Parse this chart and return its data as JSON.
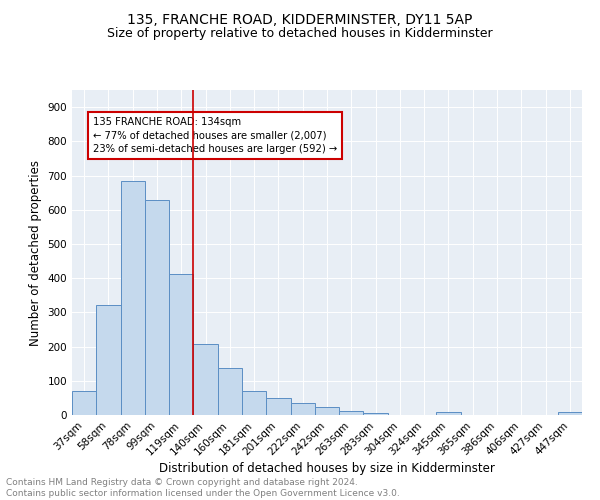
{
  "title": "135, FRANCHE ROAD, KIDDERMINSTER, DY11 5AP",
  "subtitle": "Size of property relative to detached houses in Kidderminster",
  "xlabel": "Distribution of detached houses by size in Kidderminster",
  "ylabel": "Number of detached properties",
  "categories": [
    "37sqm",
    "58sqm",
    "78sqm",
    "99sqm",
    "119sqm",
    "140sqm",
    "160sqm",
    "181sqm",
    "201sqm",
    "222sqm",
    "242sqm",
    "263sqm",
    "283sqm",
    "304sqm",
    "324sqm",
    "345sqm",
    "365sqm",
    "386sqm",
    "406sqm",
    "427sqm",
    "447sqm"
  ],
  "values": [
    70,
    322,
    683,
    628,
    411,
    209,
    137,
    70,
    49,
    35,
    22,
    13,
    7,
    0,
    0,
    8,
    0,
    0,
    0,
    0,
    8
  ],
  "bar_color": "#c5d9ed",
  "bar_edge_color": "#5b8ec4",
  "vline_x": 4.5,
  "vline_color": "#cc0000",
  "annotation_text": "135 FRANCHE ROAD: 134sqm\n← 77% of detached houses are smaller (2,007)\n23% of semi-detached houses are larger (592) →",
  "annotation_box_color": "#ffffff",
  "annotation_box_edge": "#cc0000",
  "ylim": [
    0,
    950
  ],
  "yticks": [
    0,
    100,
    200,
    300,
    400,
    500,
    600,
    700,
    800,
    900
  ],
  "footer": "Contains HM Land Registry data © Crown copyright and database right 2024.\nContains public sector information licensed under the Open Government Licence v3.0.",
  "plot_bg": "#e8eef5",
  "title_fontsize": 10,
  "subtitle_fontsize": 9,
  "tick_fontsize": 7.5,
  "label_fontsize": 8.5,
  "footer_fontsize": 6.5
}
